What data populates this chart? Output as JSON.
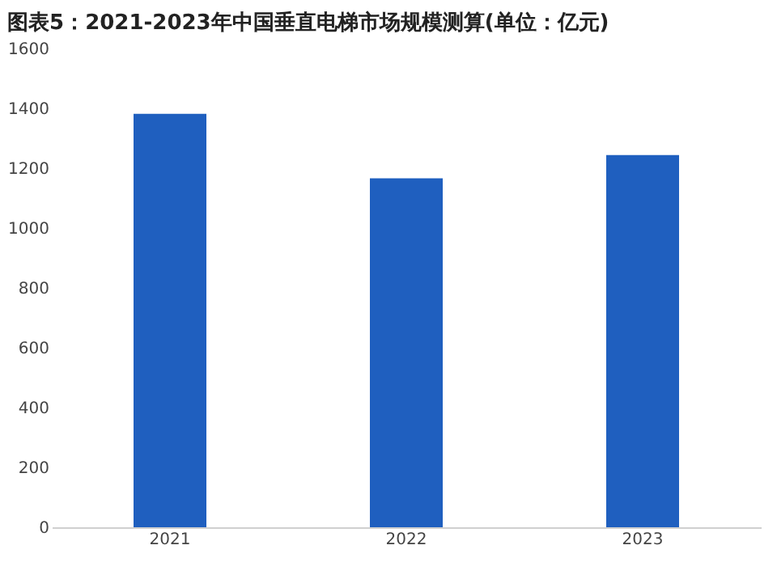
{
  "chart_data": {
    "type": "bar",
    "title": "图表5：2021-2023年中国垂直电梯市场规模测算(单位：亿元)",
    "categories": [
      "2021",
      "2022",
      "2023"
    ],
    "values": [
      1382,
      1166,
      1244
    ],
    "color": "#1f5fbf",
    "ylim": [
      0,
      1600
    ],
    "yticks": [
      0,
      200,
      400,
      600,
      800,
      1000,
      1200,
      1400,
      1600
    ],
    "grid": false
  }
}
